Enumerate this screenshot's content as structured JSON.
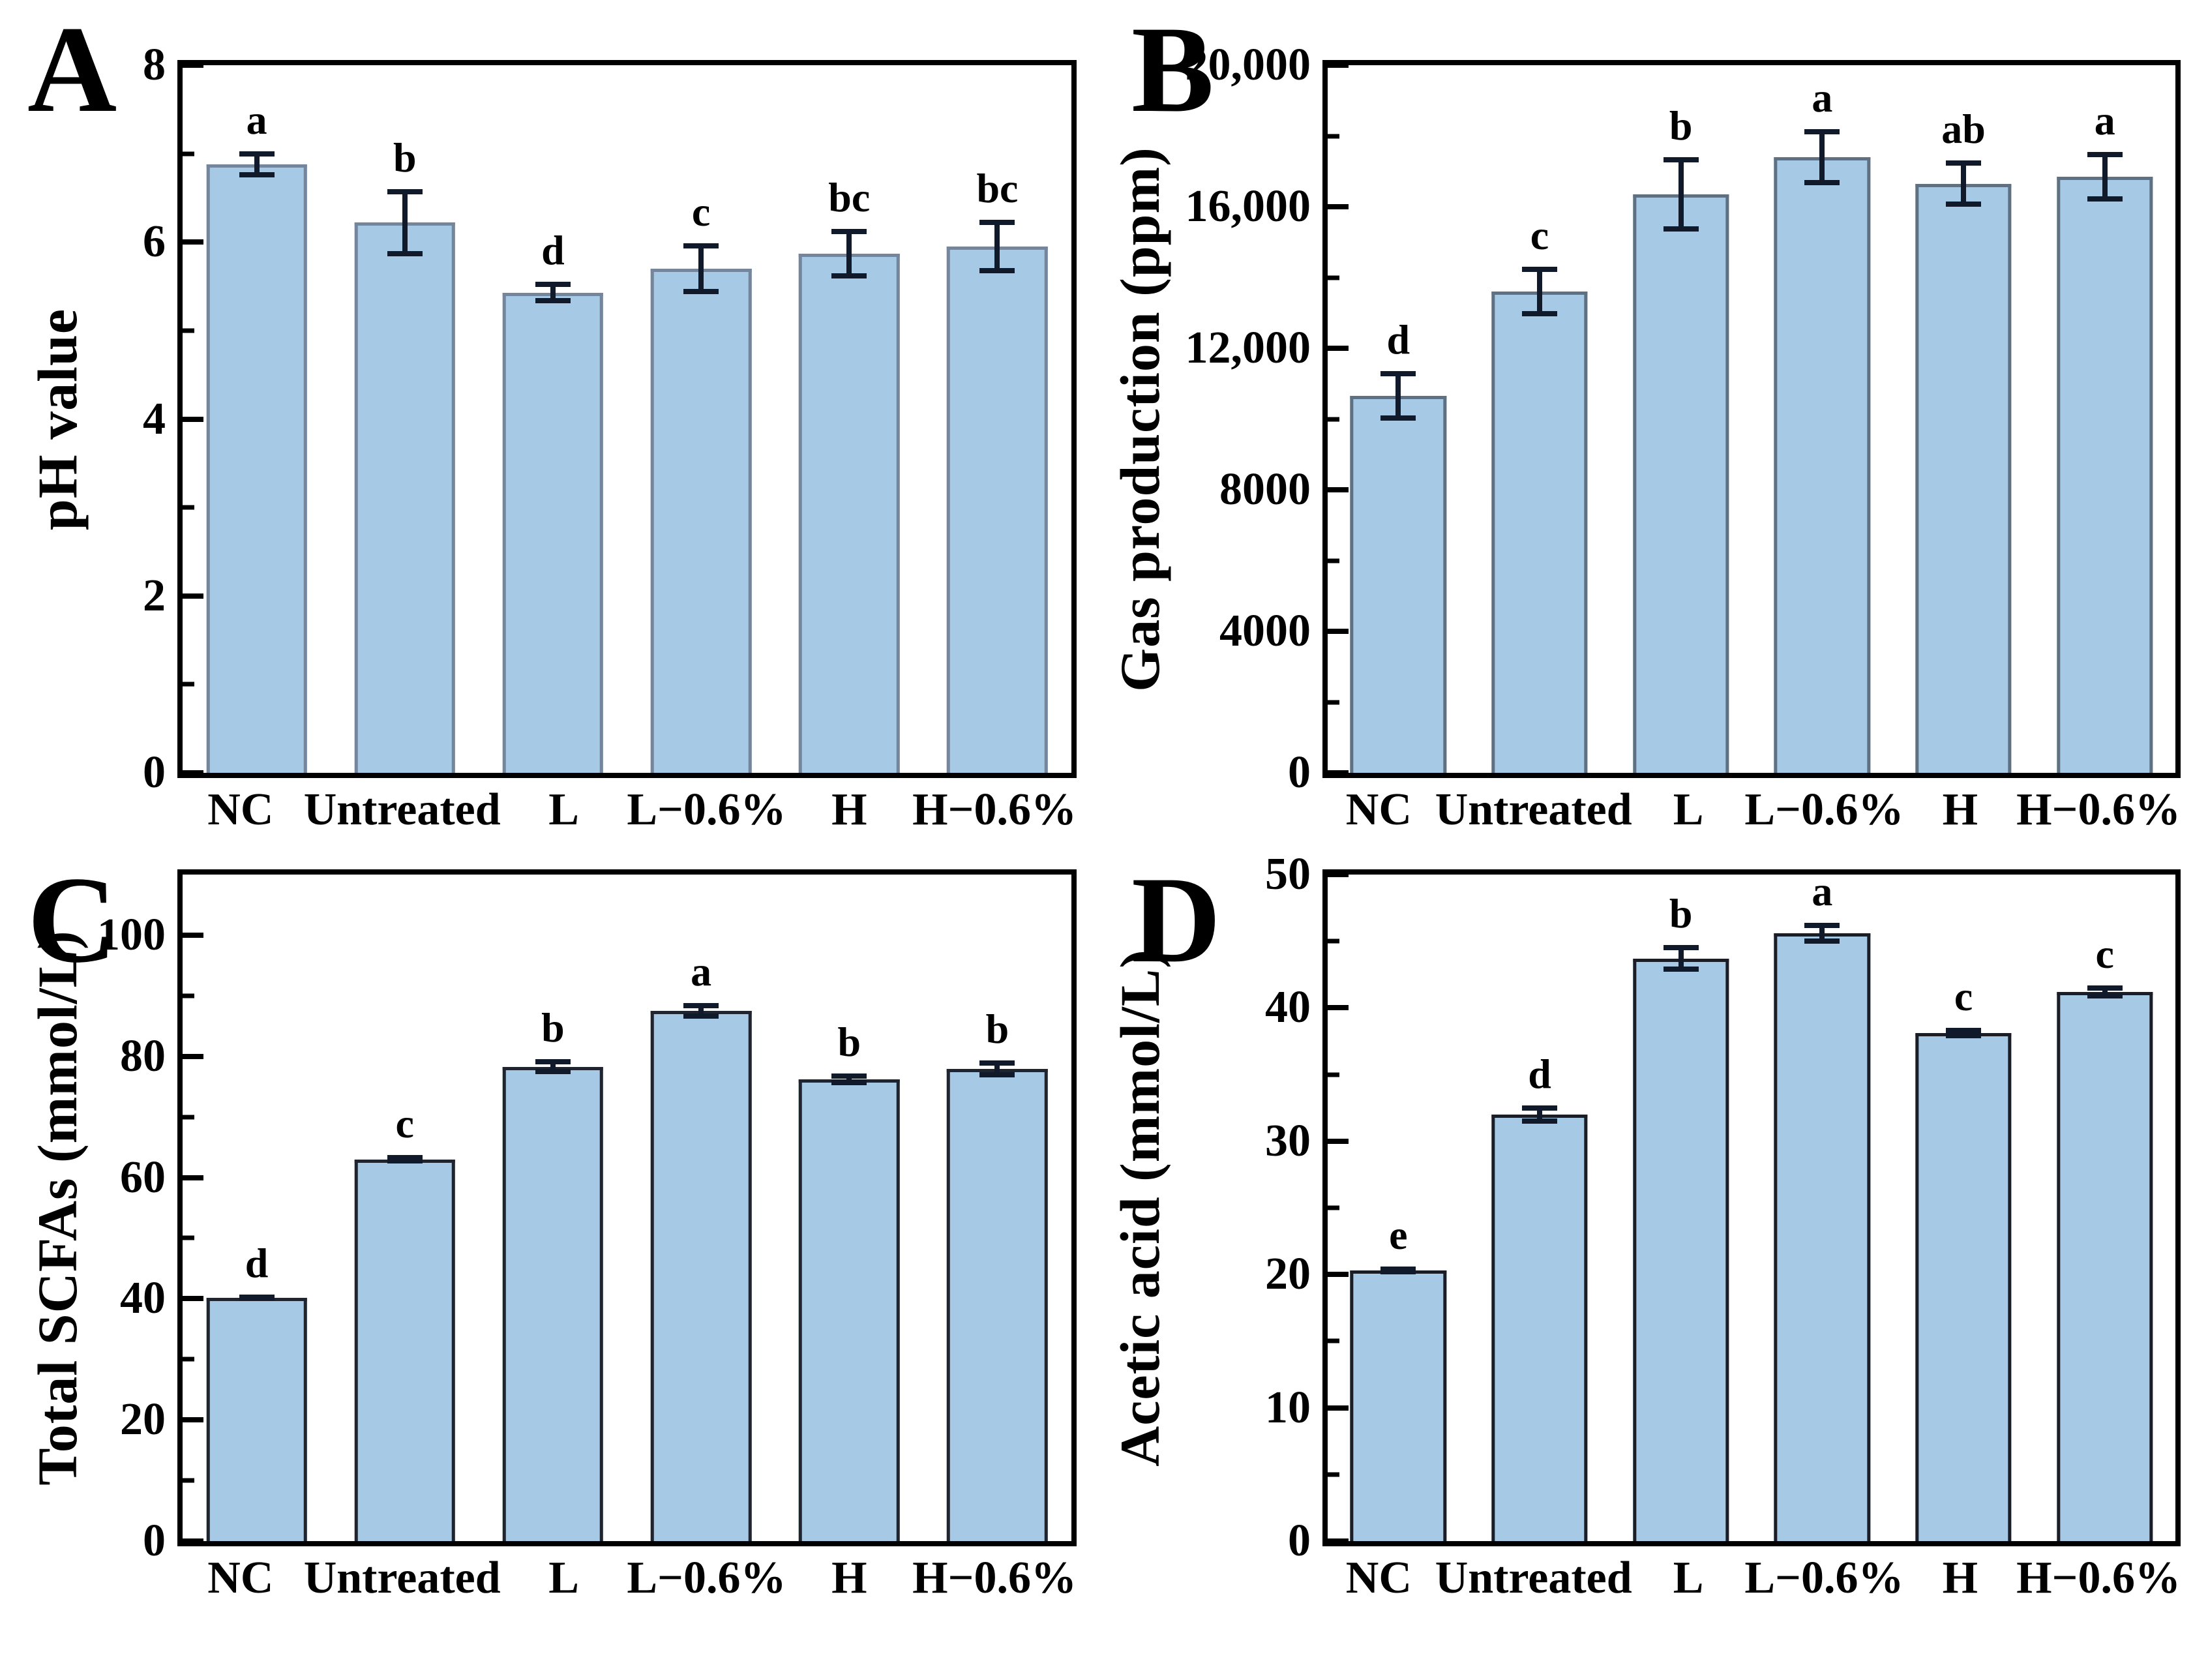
{
  "figure": {
    "background": "#ffffff",
    "bar_fill": "#a6cae6",
    "error_color": "#111a2b",
    "axis_color": "#000000"
  },
  "chart_data": [
    {
      "id": "A",
      "type": "bar",
      "panel_label": "A",
      "title": "",
      "xlabel": "",
      "ylabel": "pH value",
      "ylim": [
        0,
        8
      ],
      "grid": false,
      "legend": "none",
      "yticks": [
        {
          "value": 0,
          "label": "0"
        },
        {
          "value": 2,
          "label": "2"
        },
        {
          "value": 4,
          "label": "4"
        },
        {
          "value": 6,
          "label": "6"
        },
        {
          "value": 8,
          "label": "8"
        }
      ],
      "minor_step": 1,
      "categories": [
        "NC",
        "Untreated",
        "L",
        "L−0.6%",
        "H",
        "H−0.6%"
      ],
      "values": [
        6.88,
        6.22,
        5.43,
        5.7,
        5.87,
        5.95
      ],
      "errors": [
        0.15,
        0.38,
        0.12,
        0.29,
        0.28,
        0.3
      ],
      "sig_letters": [
        "a",
        "b",
        "d",
        "c",
        "bc",
        "bc"
      ],
      "bar_edge": "#74859c"
    },
    {
      "id": "B",
      "type": "bar",
      "panel_label": "B",
      "title": "",
      "xlabel": "",
      "ylabel": "Gas production (ppm)",
      "ylim": [
        0,
        20000
      ],
      "grid": false,
      "legend": "none",
      "yticks": [
        {
          "value": 0,
          "label": "0"
        },
        {
          "value": 4000,
          "label": "4000"
        },
        {
          "value": 8000,
          "label": "8000"
        },
        {
          "value": 12000,
          "label": "12,000"
        },
        {
          "value": 16000,
          "label": "16,000"
        },
        {
          "value": 20000,
          "label": "20,000"
        }
      ],
      "minor_step": 2000,
      "categories": [
        "NC",
        "Untreated",
        "L",
        "L−0.6%",
        "H",
        "H−0.6%"
      ],
      "values": [
        10650,
        13600,
        16350,
        17400,
        16650,
        16850
      ],
      "errors": [
        700,
        700,
        1050,
        800,
        650,
        700
      ],
      "sig_letters": [
        "d",
        "c",
        "b",
        "a",
        "ab",
        "a"
      ],
      "bar_edge": "#5f7082"
    },
    {
      "id": "C",
      "type": "bar",
      "panel_label": "C",
      "title": "",
      "xlabel": "",
      "ylabel": "Total SCFAs (mmol/L)",
      "ylim": [
        0,
        110
      ],
      "grid": false,
      "legend": "none",
      "yticks": [
        {
          "value": 0,
          "label": "0"
        },
        {
          "value": 20,
          "label": "20"
        },
        {
          "value": 40,
          "label": "40"
        },
        {
          "value": 60,
          "label": "60"
        },
        {
          "value": 80,
          "label": "80"
        },
        {
          "value": 100,
          "label": "100"
        }
      ],
      "minor_step": 10,
      "categories": [
        "NC",
        "Untreated",
        "L",
        "L−0.6%",
        "H",
        "H−0.6%"
      ],
      "values": [
        40.2,
        63.0,
        78.3,
        87.5,
        76.2,
        77.9
      ],
      "errors": [
        0.5,
        0.7,
        1.2,
        1.3,
        1.0,
        1.4
      ],
      "sig_letters": [
        "d",
        "c",
        "b",
        "a",
        "b",
        "b"
      ],
      "bar_edge": "#20242e"
    },
    {
      "id": "D",
      "type": "bar",
      "panel_label": "D",
      "title": "",
      "xlabel": "",
      "ylabel": "Acetic acid (mmol/L)",
      "ylim": [
        0,
        50
      ],
      "grid": false,
      "legend": "none",
      "yticks": [
        {
          "value": 0,
          "label": "0"
        },
        {
          "value": 10,
          "label": "10"
        },
        {
          "value": 20,
          "label": "20"
        },
        {
          "value": 30,
          "label": "30"
        },
        {
          "value": 40,
          "label": "40"
        },
        {
          "value": 50,
          "label": "50"
        }
      ],
      "minor_step": 5,
      "categories": [
        "NC",
        "Untreated",
        "L",
        "L−0.6%",
        "H",
        "H−0.6%"
      ],
      "values": [
        20.3,
        32.0,
        43.7,
        45.6,
        38.1,
        41.2
      ],
      "errors": [
        0.3,
        0.7,
        1.0,
        0.8,
        0.4,
        0.5
      ],
      "sig_letters": [
        "e",
        "d",
        "b",
        "a",
        "c",
        "c"
      ],
      "bar_edge": "#1a1d26"
    }
  ]
}
